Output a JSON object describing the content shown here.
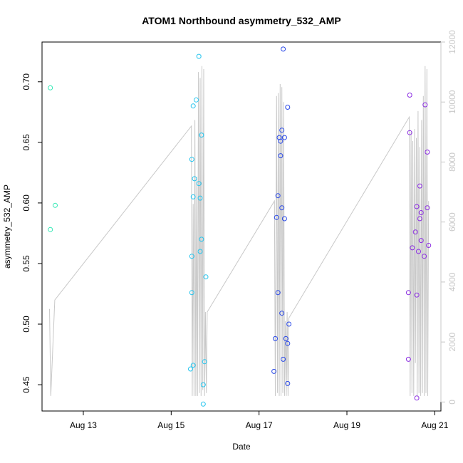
{
  "chart_data": {
    "type": "scatter",
    "title": "ATOM1 Northbound asymmetry_532_AMP",
    "xlabel": "Date",
    "ylabel": "asymmetry_532_AMP",
    "x_unit": "days in August",
    "xlim": [
      12.06,
      21.14
    ],
    "ylim": [
      0.4283,
      0.7328
    ],
    "y2lim": [
      -300,
      12000
    ],
    "x_ticks": [
      {
        "value": 13,
        "label": "Aug 13"
      },
      {
        "value": 15,
        "label": "Aug 15"
      },
      {
        "value": 17,
        "label": "Aug 17"
      },
      {
        "value": 19,
        "label": "Aug 19"
      },
      {
        "value": 21,
        "label": "Aug 21"
      }
    ],
    "y_ticks": [
      {
        "value": 0.45,
        "label": "0.45"
      },
      {
        "value": 0.5,
        "label": "0.50"
      },
      {
        "value": 0.55,
        "label": "0.55"
      },
      {
        "value": 0.6,
        "label": "0.60"
      },
      {
        "value": 0.65,
        "label": "0.65"
      },
      {
        "value": 0.7,
        "label": "0.70"
      }
    ],
    "y2_ticks": [
      {
        "value": 0,
        "label": "0"
      },
      {
        "value": 2000,
        "label": "2000"
      },
      {
        "value": 4000,
        "label": "4000"
      },
      {
        "value": 6000,
        "label": "6000"
      },
      {
        "value": 8000,
        "label": "8000"
      },
      {
        "value": 10000,
        "label": "10000"
      },
      {
        "value": 12000,
        "label": "12000"
      }
    ],
    "grid": false,
    "legend": "none",
    "colors": {
      "group1": "#2fe8b4",
      "group2": "#22c4ee",
      "group3": "#2848e8",
      "group4": "#8a2be2",
      "line": "#c8c8c8",
      "axis": "#000000",
      "right_axis": "#c8c8c8"
    },
    "series": [
      {
        "color_key": "group1",
        "points": [
          [
            12.25,
            0.695
          ],
          [
            12.36,
            0.598
          ],
          [
            12.25,
            0.578
          ]
        ]
      },
      {
        "color_key": "group2",
        "points": [
          [
            15.63,
            0.721
          ],
          [
            15.57,
            0.685
          ],
          [
            15.5,
            0.68
          ],
          [
            15.69,
            0.656
          ],
          [
            15.47,
            0.636
          ],
          [
            15.53,
            0.62
          ],
          [
            15.63,
            0.616
          ],
          [
            15.5,
            0.605
          ],
          [
            15.66,
            0.604
          ],
          [
            15.69,
            0.57
          ],
          [
            15.66,
            0.56
          ],
          [
            15.47,
            0.556
          ],
          [
            15.79,
            0.539
          ],
          [
            15.47,
            0.526
          ],
          [
            15.76,
            0.469
          ],
          [
            15.5,
            0.466
          ],
          [
            15.44,
            0.463
          ],
          [
            15.73,
            0.45
          ],
          [
            15.73,
            0.434
          ]
        ]
      },
      {
        "color_key": "group3",
        "points": [
          [
            17.55,
            0.727
          ],
          [
            17.65,
            0.679
          ],
          [
            17.46,
            0.654
          ],
          [
            17.58,
            0.654
          ],
          [
            17.49,
            0.651
          ],
          [
            17.52,
            0.66
          ],
          [
            17.49,
            0.639
          ],
          [
            17.43,
            0.606
          ],
          [
            17.52,
            0.596
          ],
          [
            17.4,
            0.588
          ],
          [
            17.58,
            0.587
          ],
          [
            17.43,
            0.526
          ],
          [
            17.52,
            0.509
          ],
          [
            17.68,
            0.5
          ],
          [
            17.37,
            0.488
          ],
          [
            17.61,
            0.488
          ],
          [
            17.65,
            0.484
          ],
          [
            17.55,
            0.471
          ],
          [
            17.34,
            0.461
          ],
          [
            17.65,
            0.451
          ]
        ]
      },
      {
        "color_key": "group4",
        "points": [
          [
            20.43,
            0.689
          ],
          [
            20.78,
            0.681
          ],
          [
            20.43,
            0.658
          ],
          [
            20.83,
            0.642
          ],
          [
            20.66,
            0.614
          ],
          [
            20.59,
            0.597
          ],
          [
            20.83,
            0.596
          ],
          [
            20.69,
            0.592
          ],
          [
            20.66,
            0.587
          ],
          [
            20.56,
            0.576
          ],
          [
            20.69,
            0.569
          ],
          [
            20.86,
            0.565
          ],
          [
            20.49,
            0.563
          ],
          [
            20.63,
            0.56
          ],
          [
            20.76,
            0.556
          ],
          [
            20.4,
            0.526
          ],
          [
            20.59,
            0.524
          ],
          [
            20.4,
            0.471
          ],
          [
            20.59,
            0.439
          ]
        ]
      }
    ],
    "line_series": {
      "axis": "right",
      "x": [
        12.23,
        12.26,
        12.35,
        15.46,
        15.48,
        15.5,
        15.52,
        15.54,
        15.56,
        15.58,
        15.6,
        15.62,
        15.64,
        15.66,
        15.68,
        15.7,
        15.72,
        15.74,
        15.76,
        15.78,
        15.8,
        15.82,
        17.35,
        17.37,
        17.4,
        17.42,
        17.44,
        17.46,
        17.48,
        17.5,
        17.52,
        17.54,
        17.56,
        17.58,
        17.6,
        17.62,
        17.64,
        17.66,
        17.68,
        20.42,
        20.44,
        20.46,
        20.48,
        20.5,
        20.52,
        20.54,
        20.56,
        20.58,
        20.6,
        20.62,
        20.64,
        20.66,
        20.68,
        20.7,
        20.72,
        20.74,
        20.76,
        20.78,
        20.8,
        20.82,
        20.84,
        20.86
      ],
      "y": [
        3100,
        200,
        3400,
        9200,
        200,
        6600,
        200,
        9400,
        200,
        7500,
        200,
        11000,
        300,
        10800,
        200,
        11200,
        400,
        11100,
        200,
        3000,
        300,
        3000,
        6700,
        200,
        10200,
        300,
        10300,
        200,
        10600,
        200,
        10500,
        300,
        10000,
        200,
        2700,
        200,
        3000,
        200,
        2800,
        9500,
        200,
        9000,
        300,
        8700,
        200,
        9100,
        1300,
        8800,
        200,
        9700,
        300,
        8500,
        200,
        9400,
        300,
        10200,
        200,
        11200,
        300,
        11100,
        200,
        6700
      ]
    }
  }
}
